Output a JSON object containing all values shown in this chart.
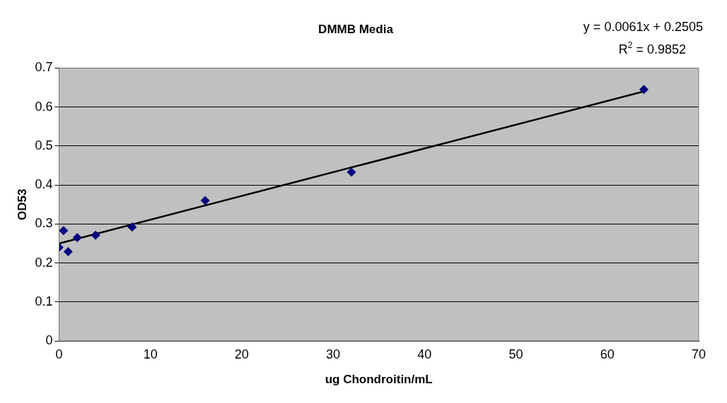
{
  "chart_data": {
    "type": "scatter",
    "title": "DMMB Media",
    "xlabel": "ug Chondroitin/mL",
    "ylabel": "OD53",
    "xlim": [
      0,
      70
    ],
    "xticks": [
      0,
      10,
      20,
      30,
      40,
      50,
      60,
      70
    ],
    "ylim": [
      0,
      0.7
    ],
    "yticks": [
      0,
      0.1,
      0.2,
      0.3,
      0.4,
      0.5,
      0.6,
      0.7
    ],
    "grid": "y",
    "marker": "diamond",
    "series": [
      {
        "type": "scatter",
        "color": "#000080",
        "x": [
          0,
          0.5,
          1,
          2,
          4,
          8,
          16,
          32,
          64
        ],
        "values": [
          0.24,
          0.283,
          0.229,
          0.265,
          0.271,
          0.292,
          0.36,
          0.433,
          0.645
        ]
      },
      {
        "type": "line",
        "color": "#000000",
        "x": [
          0,
          64
        ],
        "values": [
          0.25,
          0.64
        ],
        "marker": "none"
      }
    ],
    "annotations": [
      "y = 0.0061x + 0.2505",
      "R$^{2}$ = 0.9852"
    ]
  }
}
